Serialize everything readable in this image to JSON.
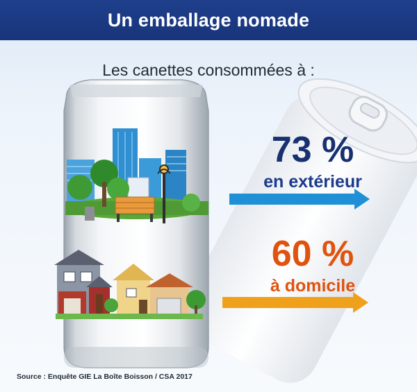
{
  "header": {
    "title": "Un emballage nomade"
  },
  "subtitle": "Les canettes consommées à :",
  "stats": [
    {
      "value": "73 %",
      "label": "en extérieur",
      "color": "#17306f",
      "arrow_color": "#1f8fd6"
    },
    {
      "value": "60 %",
      "label": "à domicile",
      "color": "#e0530e",
      "arrow_color": "#f0a11c"
    }
  ],
  "source": "Source : Enquête GIE La Boîte Boisson / CSA 2017",
  "icons": [
    "can-icon",
    "city-park-illustration",
    "houses-illustration",
    "can-lid-icon",
    "arrow-right-icon"
  ]
}
